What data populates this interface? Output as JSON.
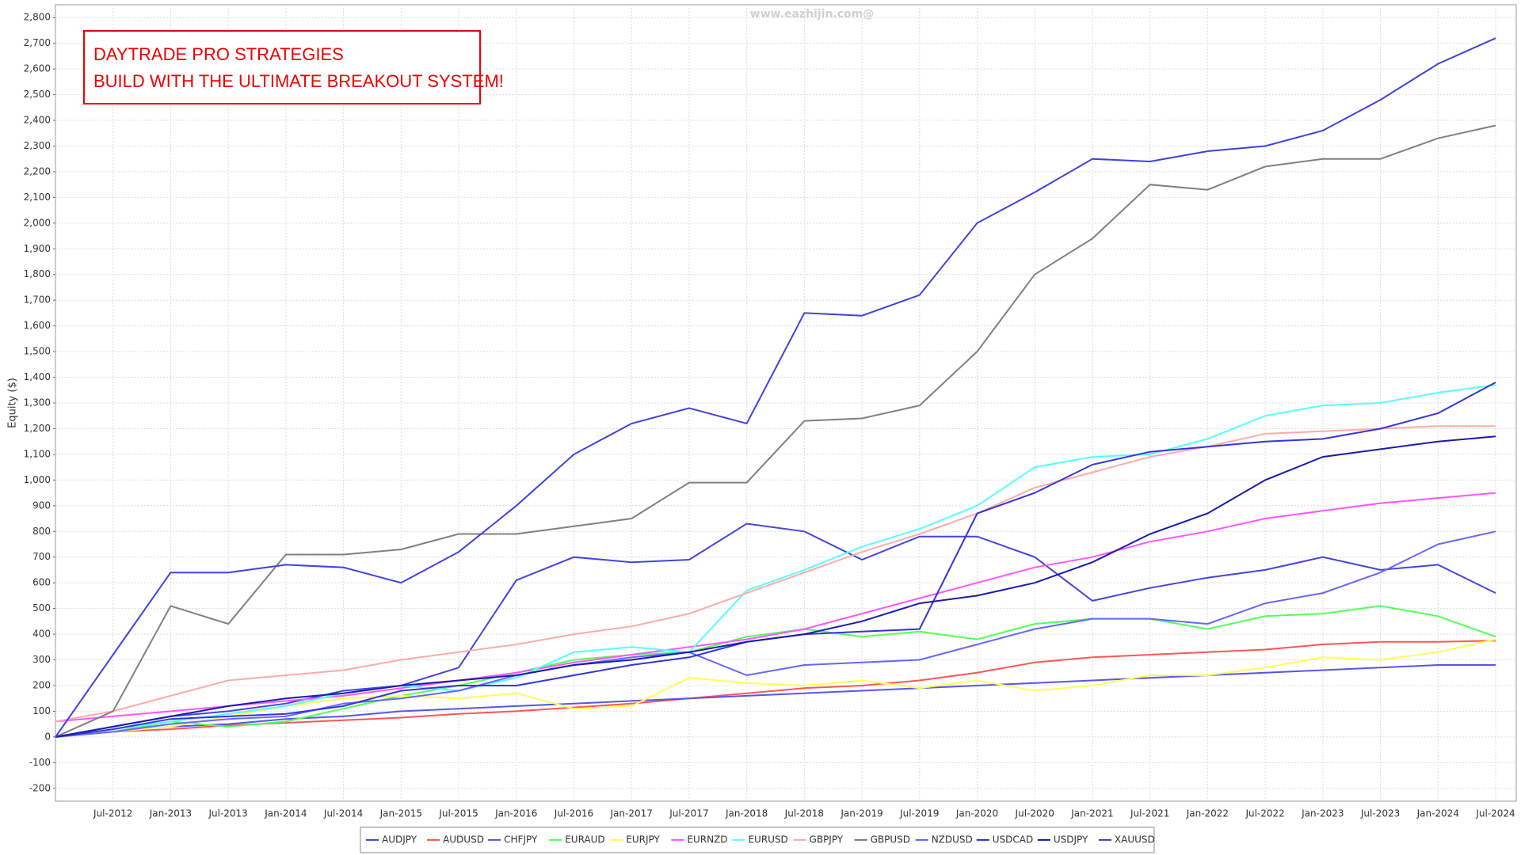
{
  "chart_data": {
    "type": "line",
    "watermark": "www.eazhijin.com@",
    "annotation": [
      "DAYTRADE PRO STRATEGIES",
      "BUILD WITH THE ULTIMATE BREAKOUT SYSTEM!"
    ],
    "y_label": "Equity ($)",
    "categories": [
      null,
      "Jul-2012",
      "Jan-2013",
      "Jul-2013",
      "Jan-2014",
      "Jul-2014",
      "Jan-2015",
      "Jul-2015",
      "Jan-2016",
      "Jul-2016",
      "Jan-2017",
      "Jul-2017",
      "Jan-2018",
      "Jul-2018",
      "Jan-2019",
      "Jul-2019",
      "Jan-2020",
      "Jul-2020",
      "Jan-2021",
      "Jul-2021",
      "Jan-2022",
      "Jul-2022",
      "Jan-2023",
      "Jul-2023",
      "Jan-2024",
      "Jul-2024"
    ],
    "ylim": [
      -250,
      2850
    ],
    "yticks": [
      -200,
      -100,
      0,
      100,
      200,
      300,
      400,
      500,
      600,
      700,
      800,
      900,
      {
        "value": 1000,
        "label": "1,000"
      },
      {
        "value": 1100,
        "label": "1,100"
      },
      {
        "value": 1200,
        "label": "1,200"
      },
      {
        "value": 1300,
        "label": "1,300"
      },
      {
        "value": 1400,
        "label": "1,400"
      },
      {
        "value": 1500,
        "label": "1,500"
      },
      {
        "value": 1600,
        "label": "1,600"
      },
      {
        "value": 1700,
        "label": "1,700"
      },
      {
        "value": 1800,
        "label": "1,800"
      },
      {
        "value": 1900,
        "label": "1,900"
      },
      {
        "value": 2000,
        "label": "2,000"
      },
      {
        "value": 2100,
        "label": "2,100"
      },
      {
        "value": 2200,
        "label": "2,200"
      },
      {
        "value": 2300,
        "label": "2,300"
      },
      {
        "value": 2400,
        "label": "2,400"
      },
      {
        "value": 2500,
        "label": "2,500"
      },
      {
        "value": 2600,
        "label": "2,600"
      },
      {
        "value": 2700,
        "label": "2,700"
      },
      {
        "value": 2800,
        "label": "2,800"
      }
    ],
    "grid": true,
    "series": [
      {
        "name": "AUDJPY",
        "color": "#4444dd",
        "values": [
          0,
          40,
          80,
          100,
          130,
          180,
          200,
          270,
          610,
          700,
          680,
          690,
          830,
          800,
          690,
          780,
          780,
          700,
          530,
          580,
          620,
          650,
          700,
          650,
          670,
          560
        ]
      },
      {
        "name": "AUDUSD",
        "color": "#ff5555",
        "values": [
          0,
          20,
          30,
          45,
          55,
          65,
          75,
          90,
          100,
          115,
          130,
          150,
          170,
          190,
          200,
          220,
          250,
          290,
          310,
          320,
          330,
          340,
          360,
          370,
          370,
          375
        ]
      },
      {
        "name": "CHFJPY",
        "color": "#5555ee",
        "values": [
          0,
          20,
          40,
          50,
          70,
          80,
          100,
          110,
          120,
          130,
          140,
          150,
          160,
          170,
          180,
          190,
          200,
          210,
          220,
          230,
          240,
          250,
          260,
          270,
          280,
          280
        ]
      },
      {
        "name": "EURAUD",
        "color": "#55ff55",
        "values": [
          0,
          20,
          60,
          40,
          60,
          110,
          160,
          200,
          250,
          300,
          320,
          330,
          390,
          420,
          390,
          410,
          380,
          440,
          460,
          460,
          420,
          470,
          480,
          510,
          470,
          390
        ]
      },
      {
        "name": "EURJPY",
        "color": "#ffff55",
        "values": [
          0,
          20,
          40,
          80,
          120,
          150,
          160,
          150,
          170,
          110,
          120,
          230,
          210,
          200,
          220,
          190,
          220,
          180,
          200,
          240,
          240,
          270,
          310,
          300,
          330,
          380
        ]
      },
      {
        "name": "EURNZD",
        "color": "#ff55ff",
        "values": [
          60,
          80,
          100,
          120,
          140,
          160,
          190,
          220,
          250,
          290,
          320,
          350,
          380,
          420,
          480,
          540,
          600,
          660,
          700,
          760,
          800,
          850,
          880,
          910,
          930,
          950
        ]
      },
      {
        "name": "EURUSD",
        "color": "#55ffff",
        "values": [
          0,
          30,
          60,
          90,
          120,
          170,
          200,
          180,
          230,
          330,
          350,
          330,
          570,
          650,
          740,
          810,
          900,
          1050,
          1090,
          1100,
          1160,
          1250,
          1290,
          1300,
          1340,
          1370
        ]
      },
      {
        "name": "GBPJPY",
        "color": "#ffaaaa",
        "values": [
          60,
          100,
          160,
          220,
          240,
          260,
          300,
          330,
          360,
          400,
          430,
          480,
          560,
          640,
          720,
          790,
          870,
          970,
          1030,
          1090,
          1130,
          1180,
          1190,
          1200,
          1210,
          1210
        ]
      },
      {
        "name": "GBPUSD",
        "color": "#808080",
        "values": [
          0,
          100,
          510,
          440,
          710,
          710,
          730,
          790,
          790,
          820,
          850,
          990,
          990,
          1230,
          1240,
          1290,
          1500,
          1800,
          1940,
          2150,
          2130,
          2220,
          2250,
          2250,
          2330,
          2380
        ]
      },
      {
        "name": "NZDUSD",
        "color": "#6666ff",
        "values": [
          0,
          20,
          50,
          70,
          80,
          130,
          150,
          180,
          240,
          280,
          310,
          330,
          240,
          280,
          290,
          300,
          360,
          420,
          460,
          460,
          440,
          520,
          560,
          640,
          750,
          800
        ]
      },
      {
        "name": "USDCAD",
        "color": "#3333dd",
        "values": [
          0,
          30,
          70,
          80,
          90,
          120,
          180,
          200,
          200,
          240,
          280,
          310,
          370,
          400,
          410,
          420,
          870,
          950,
          1060,
          1110,
          1130,
          1150,
          1160,
          1200,
          1260,
          1380
        ]
      },
      {
        "name": "USDJPY",
        "color": "#1a1ab0",
        "values": [
          0,
          40,
          80,
          120,
          150,
          170,
          200,
          220,
          240,
          280,
          300,
          330,
          370,
          400,
          450,
          520,
          550,
          600,
          680,
          790,
          870,
          1000,
          1090,
          1120,
          1150,
          1170
        ]
      },
      {
        "name": "XAUUSD",
        "color": "#4040e0",
        "values": [
          0,
          320,
          640,
          640,
          670,
          660,
          600,
          720,
          900,
          1100,
          1220,
          1280,
          1220,
          1650,
          1640,
          1720,
          2000,
          2120,
          2250,
          2240,
          2280,
          2300,
          2360,
          2480,
          2620,
          2720
        ]
      }
    ]
  }
}
